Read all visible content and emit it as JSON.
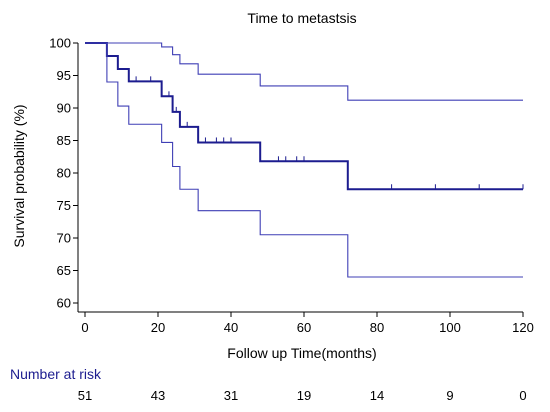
{
  "chart_data": {
    "type": "line",
    "title": "Time to metastsis",
    "xlabel": "Follow up Time(months)",
    "ylabel": "Survival probability (%)",
    "xlim": [
      0,
      120
    ],
    "ylim": [
      60,
      100
    ],
    "x_ticks": [
      0,
      20,
      40,
      60,
      80,
      100,
      120
    ],
    "y_ticks": [
      60,
      65,
      70,
      75,
      80,
      85,
      90,
      95,
      100
    ],
    "grid": false,
    "series": [
      {
        "role": "survival estimate",
        "color": "#1c1c8f",
        "steps": [
          [
            0,
            100
          ],
          [
            6,
            98
          ],
          [
            9,
            96
          ],
          [
            12,
            94.1
          ],
          [
            21,
            91.8
          ],
          [
            24,
            89.4
          ],
          [
            26,
            87.1
          ],
          [
            31,
            84.7
          ],
          [
            48,
            81.8
          ],
          [
            72,
            77.5
          ],
          [
            120,
            77.5
          ]
        ],
        "censor_x": [
          14,
          18,
          23,
          25,
          28,
          33,
          36,
          38,
          40,
          53,
          55,
          58,
          60,
          72,
          84,
          96,
          108,
          120
        ]
      },
      {
        "role": "upper confidence limit",
        "color": "#3f3fb5",
        "steps": [
          [
            0,
            100
          ],
          [
            21,
            99.4
          ],
          [
            24,
            98.2
          ],
          [
            26,
            96.8
          ],
          [
            31,
            95.2
          ],
          [
            48,
            93.4
          ],
          [
            72,
            91.2
          ],
          [
            120,
            91.2
          ]
        ]
      },
      {
        "role": "lower confidence limit",
        "color": "#3f3fb5",
        "steps": [
          [
            0,
            100
          ],
          [
            6,
            94
          ],
          [
            9,
            90.3
          ],
          [
            12,
            87.5
          ],
          [
            21,
            84.7
          ],
          [
            24,
            81
          ],
          [
            26,
            77.5
          ],
          [
            31,
            74.2
          ],
          [
            48,
            70.5
          ],
          [
            72,
            64
          ],
          [
            120,
            64
          ]
        ]
      }
    ]
  },
  "risk_table": {
    "title": "Number at risk",
    "title_color": "#1c1c8f",
    "times": [
      0,
      20,
      40,
      60,
      80,
      100,
      120
    ],
    "counts": [
      "51",
      "43",
      "31",
      "19",
      "14",
      "9",
      "0"
    ]
  }
}
